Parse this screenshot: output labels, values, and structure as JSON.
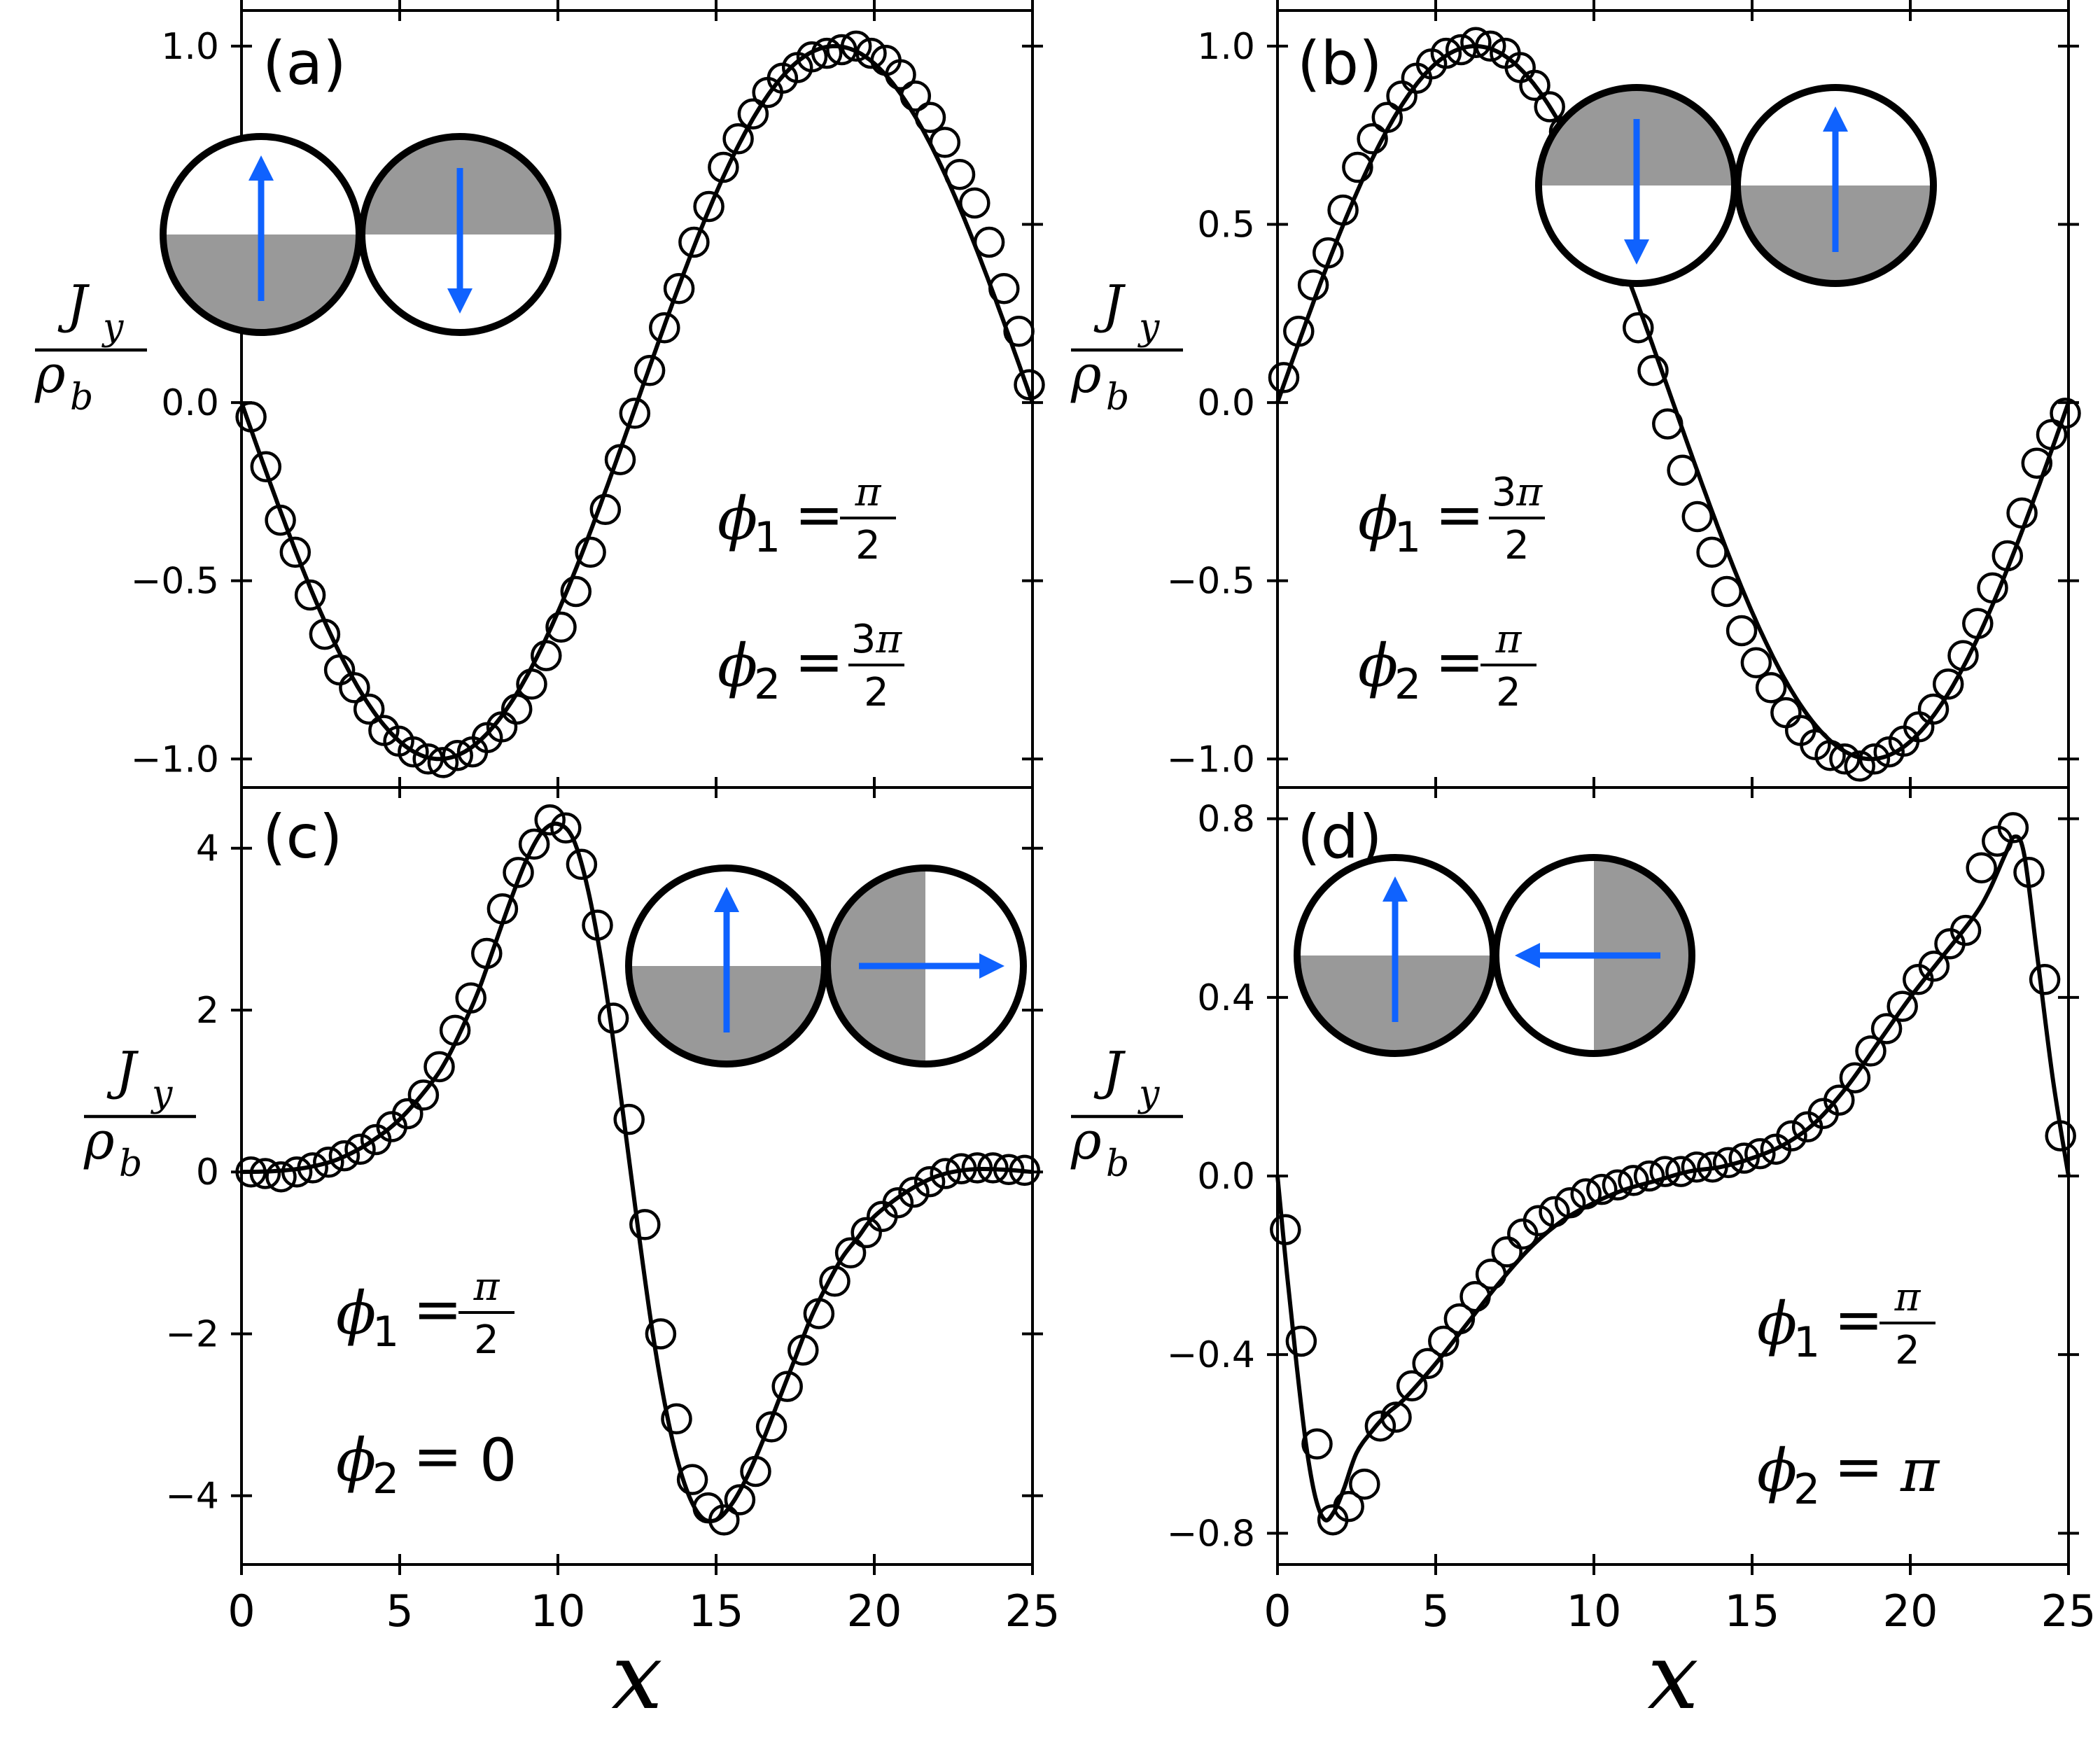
{
  "figure": {
    "xlabel": "x",
    "ylabel": {
      "numerator": "J",
      "numerator_sub": "y",
      "denominator": "ρ",
      "denominator_sub": "b"
    }
  },
  "chart_data": [
    {
      "id": "a",
      "type": "line",
      "panel_label": "(a)",
      "xlabel": "",
      "ylabel": "J_y / ρ_b",
      "xlim": [
        0,
        25
      ],
      "ylim": [
        -1.08,
        1.1
      ],
      "xticks": [
        0,
        5,
        10,
        15,
        20,
        25
      ],
      "yticks": [
        -1.0,
        -0.5,
        0.0,
        0.5,
        1.0
      ],
      "ytick_labels": [
        "−1.0",
        "−0.5",
        "0.0",
        "0.5",
        "1.0"
      ],
      "xtick_labels": [],
      "grid": false,
      "annotation": {
        "phi1": {
          "var": "ϕ",
          "sub": "1",
          "eq": "=",
          "num": "π",
          "den": "2"
        },
        "phi2": {
          "var": "ϕ",
          "sub": "2",
          "eq": "=",
          "num": "3π",
          "den": "2"
        }
      },
      "inset": {
        "left": {
          "arrow": "up",
          "shaded": "bottom"
        },
        "right": {
          "arrow": "down",
          "shaded": "top"
        }
      },
      "series": [
        {
          "kind": "line",
          "formula": "-sin(2*pi*x/25)"
        },
        {
          "kind": "markers",
          "marker": "open-circle",
          "x": [
            0.3,
            0.77,
            1.23,
            1.7,
            2.17,
            2.63,
            3.1,
            3.57,
            4.03,
            4.5,
            4.97,
            5.43,
            5.9,
            6.37,
            6.83,
            7.3,
            7.77,
            8.23,
            8.7,
            9.17,
            9.63,
            10.1,
            10.57,
            11.03,
            11.5,
            11.97,
            12.43,
            12.9,
            13.37,
            13.83,
            14.3,
            14.77,
            15.23,
            15.7,
            16.17,
            16.63,
            17.1,
            17.57,
            18.03,
            18.5,
            18.97,
            19.43,
            19.9,
            20.37,
            20.83,
            21.3,
            21.77,
            22.23,
            22.7,
            23.17,
            23.63,
            24.1,
            24.57,
            24.9
          ],
          "y": [
            -0.04,
            -0.18,
            -0.33,
            -0.42,
            -0.54,
            -0.65,
            -0.75,
            -0.8,
            -0.86,
            -0.92,
            -0.95,
            -0.98,
            -1.0,
            -1.01,
            -0.99,
            -0.98,
            -0.94,
            -0.91,
            -0.86,
            -0.79,
            -0.71,
            -0.63,
            -0.53,
            -0.42,
            -0.3,
            -0.16,
            -0.03,
            0.09,
            0.21,
            0.32,
            0.45,
            0.55,
            0.66,
            0.74,
            0.81,
            0.87,
            0.91,
            0.94,
            0.97,
            0.98,
            0.99,
            1.0,
            0.98,
            0.96,
            0.92,
            0.86,
            0.8,
            0.73,
            0.64,
            0.56,
            0.45,
            0.32,
            0.2,
            0.05
          ]
        }
      ]
    },
    {
      "id": "b",
      "type": "line",
      "panel_label": "(b)",
      "xlabel": "",
      "ylabel": "J_y / ρ_b",
      "xlim": [
        0,
        25
      ],
      "ylim": [
        -1.08,
        1.1
      ],
      "xticks": [
        0,
        5,
        10,
        15,
        20,
        25
      ],
      "yticks": [
        -1.0,
        -0.5,
        0.0,
        0.5,
        1.0
      ],
      "ytick_labels": [
        "−1.0",
        "−0.5",
        "0.0",
        "0.5",
        "1.0"
      ],
      "xtick_labels": [],
      "grid": false,
      "annotation": {
        "phi1": {
          "var": "ϕ",
          "sub": "1",
          "eq": "=",
          "num": "3π",
          "den": "2"
        },
        "phi2": {
          "var": "ϕ",
          "sub": "2",
          "eq": "=",
          "num": "π",
          "den": "2"
        }
      },
      "inset": {
        "left": {
          "arrow": "down",
          "shaded": "top"
        },
        "right": {
          "arrow": "up",
          "shaded": "bottom"
        }
      },
      "series": [
        {
          "kind": "line",
          "formula": "sin(2*pi*x/25)"
        },
        {
          "kind": "markers",
          "marker": "open-circle",
          "x": [
            0.2,
            0.67,
            1.13,
            1.6,
            2.07,
            2.53,
            3.0,
            3.47,
            3.93,
            4.4,
            4.87,
            5.33,
            5.8,
            6.27,
            6.73,
            7.2,
            7.67,
            8.13,
            8.6,
            9.07,
            9.53,
            10.0,
            10.47,
            10.93,
            11.4,
            11.87,
            12.33,
            12.8,
            13.27,
            13.73,
            14.2,
            14.67,
            15.13,
            15.6,
            16.07,
            16.53,
            17.0,
            17.47,
            17.93,
            18.4,
            18.87,
            19.33,
            19.8,
            20.27,
            20.73,
            21.2,
            21.67,
            22.13,
            22.6,
            23.07,
            23.53,
            24.0,
            24.47,
            24.9
          ],
          "y": [
            0.07,
            0.2,
            0.33,
            0.42,
            0.54,
            0.66,
            0.74,
            0.8,
            0.86,
            0.91,
            0.95,
            0.98,
            0.99,
            1.01,
            1.0,
            0.98,
            0.94,
            0.89,
            0.83,
            0.76,
            0.67,
            0.6,
            0.48,
            0.37,
            0.21,
            0.09,
            -0.06,
            -0.19,
            -0.32,
            -0.42,
            -0.53,
            -0.64,
            -0.73,
            -0.8,
            -0.87,
            -0.92,
            -0.96,
            -0.99,
            -1.0,
            -1.02,
            -1.0,
            -0.98,
            -0.95,
            -0.91,
            -0.86,
            -0.79,
            -0.71,
            -0.62,
            -0.52,
            -0.43,
            -0.31,
            -0.17,
            -0.09,
            -0.03
          ]
        }
      ]
    },
    {
      "id": "c",
      "type": "line",
      "panel_label": "(c)",
      "xlabel": "x",
      "ylabel": "J_y / ρ_b",
      "xlim": [
        0,
        25
      ],
      "ylim": [
        -4.85,
        4.75
      ],
      "xticks": [
        0,
        5,
        10,
        15,
        20,
        25
      ],
      "yticks": [
        -4,
        -2,
        0,
        2,
        4
      ],
      "ytick_labels": [
        "−4",
        "−2",
        "0",
        "2",
        "4"
      ],
      "xtick_labels": [
        "0",
        "5",
        "10",
        "15",
        "20",
        "25"
      ],
      "grid": false,
      "annotation": {
        "phi1": {
          "var": "ϕ",
          "sub": "1",
          "eq": "=",
          "num": "π",
          "den": "2"
        },
        "phi2": {
          "var": "ϕ",
          "sub": "2",
          "eq": "=",
          "value": "0"
        }
      },
      "inset": {
        "left": {
          "arrow": "up",
          "shaded": "bottom"
        },
        "right": {
          "arrow": "right",
          "shaded": "left"
        }
      },
      "series": [
        {
          "kind": "line",
          "x": [
            0,
            1,
            2,
            3,
            4,
            5,
            6,
            6.5,
            7,
            7.5,
            8,
            8.5,
            9,
            9.5,
            10,
            10.5,
            11,
            11.5,
            12,
            12.5,
            13,
            13.5,
            14,
            14.5,
            15,
            15.5,
            16,
            16.5,
            17,
            17.5,
            18,
            18.5,
            19,
            19.5,
            20,
            21,
            22,
            23,
            24,
            25
          ],
          "y": [
            0,
            0.01,
            0.05,
            0.15,
            0.35,
            0.65,
            1.1,
            1.4,
            1.8,
            2.25,
            2.8,
            3.35,
            3.85,
            4.2,
            4.3,
            4.1,
            3.4,
            2.3,
            0.9,
            -0.6,
            -2.0,
            -3.1,
            -3.85,
            -4.25,
            -4.3,
            -4.1,
            -3.75,
            -3.3,
            -2.8,
            -2.3,
            -1.8,
            -1.4,
            -1.05,
            -0.8,
            -0.55,
            -0.25,
            -0.05,
            0.03,
            0.03,
            0.0
          ]
        },
        {
          "kind": "markers",
          "marker": "open-circle",
          "x": [
            0.3,
            0.75,
            1.25,
            1.75,
            2.25,
            2.75,
            3.25,
            3.75,
            4.25,
            4.75,
            5.25,
            5.75,
            6.25,
            6.75,
            7.25,
            7.75,
            8.25,
            8.75,
            9.25,
            9.75,
            10.25,
            10.75,
            11.25,
            11.75,
            12.25,
            12.75,
            13.25,
            13.75,
            14.25,
            14.75,
            15.25,
            15.75,
            16.25,
            16.75,
            17.25,
            17.75,
            18.25,
            18.75,
            19.25,
            19.75,
            20.25,
            20.75,
            21.25,
            21.75,
            22.25,
            22.75,
            23.25,
            23.75,
            24.25,
            24.75
          ],
          "y": [
            0.0,
            -0.02,
            -0.06,
            0.0,
            0.05,
            0.12,
            0.2,
            0.28,
            0.4,
            0.56,
            0.72,
            0.95,
            1.3,
            1.75,
            2.15,
            2.7,
            3.25,
            3.7,
            4.05,
            4.35,
            4.25,
            3.8,
            3.05,
            1.9,
            0.65,
            -0.65,
            -2.0,
            -3.05,
            -3.8,
            -4.15,
            -4.3,
            -4.05,
            -3.7,
            -3.15,
            -2.65,
            -2.2,
            -1.75,
            -1.35,
            -1.0,
            -0.75,
            -0.55,
            -0.38,
            -0.25,
            -0.12,
            -0.02,
            0.04,
            0.05,
            0.05,
            0.03,
            0.02
          ]
        }
      ]
    },
    {
      "id": "d",
      "type": "line",
      "panel_label": "(d)",
      "xlabel": "x",
      "ylabel": "J_y / ρ_b",
      "xlim": [
        0,
        25
      ],
      "ylim": [
        -0.87,
        0.87
      ],
      "xticks": [
        0,
        5,
        10,
        15,
        20,
        25
      ],
      "yticks": [
        -0.8,
        -0.4,
        0.0,
        0.4,
        0.8
      ],
      "ytick_labels": [
        "−0.8",
        "−0.4",
        "0.0",
        "0.4",
        "0.8"
      ],
      "xtick_labels": [
        "0",
        "5",
        "10",
        "15",
        "20",
        "25"
      ],
      "grid": false,
      "annotation": {
        "phi1": {
          "var": "ϕ",
          "sub": "1",
          "eq": "=",
          "num": "π",
          "den": "2"
        },
        "phi2": {
          "var": "ϕ",
          "sub": "2",
          "eq": "=",
          "value_pi": "π"
        }
      },
      "inset": {
        "left": {
          "arrow": "up",
          "shaded": "bottom"
        },
        "right": {
          "arrow": "left",
          "shaded": "right"
        }
      },
      "series": [
        {
          "kind": "line",
          "x": [
            0,
            0.3,
            0.6,
            0.9,
            1.2,
            1.5,
            1.8,
            2.1,
            2.5,
            3,
            3.5,
            4,
            5,
            6,
            7,
            8,
            9,
            10,
            11,
            12,
            13,
            14,
            15,
            16,
            17,
            18,
            19,
            20,
            21,
            22,
            22.5,
            23,
            23.3,
            23.6,
            24,
            24.5,
            25
          ],
          "y": [
            0,
            -0.22,
            -0.42,
            -0.6,
            -0.72,
            -0.77,
            -0.75,
            -0.7,
            -0.62,
            -0.57,
            -0.53,
            -0.5,
            -0.42,
            -0.33,
            -0.24,
            -0.16,
            -0.1,
            -0.06,
            -0.03,
            -0.01,
            0.01,
            0.02,
            0.04,
            0.07,
            0.12,
            0.2,
            0.3,
            0.4,
            0.49,
            0.58,
            0.64,
            0.72,
            0.76,
            0.72,
            0.5,
            0.22,
            0.0
          ]
        },
        {
          "kind": "markers",
          "marker": "open-circle",
          "x": [
            0.25,
            0.75,
            1.25,
            1.75,
            2.25,
            2.75,
            3.25,
            3.75,
            4.25,
            4.75,
            5.25,
            5.75,
            6.25,
            6.75,
            7.25,
            7.75,
            8.25,
            8.75,
            9.25,
            9.75,
            10.25,
            10.75,
            11.25,
            11.75,
            12.25,
            12.75,
            13.25,
            13.75,
            14.25,
            14.75,
            15.25,
            15.75,
            16.25,
            16.75,
            17.25,
            17.75,
            18.25,
            18.75,
            19.25,
            19.75,
            20.25,
            20.75,
            21.25,
            21.75,
            22.25,
            22.75,
            23.25,
            23.75,
            24.25,
            24.75
          ],
          "y": [
            -0.12,
            -0.37,
            -0.6,
            -0.77,
            -0.74,
            -0.69,
            -0.56,
            -0.54,
            -0.47,
            -0.42,
            -0.37,
            -0.32,
            -0.27,
            -0.22,
            -0.17,
            -0.13,
            -0.1,
            -0.08,
            -0.06,
            -0.04,
            -0.03,
            -0.02,
            -0.01,
            0.0,
            0.01,
            0.01,
            0.02,
            0.02,
            0.03,
            0.04,
            0.05,
            0.06,
            0.09,
            0.11,
            0.14,
            0.17,
            0.22,
            0.28,
            0.33,
            0.38,
            0.44,
            0.47,
            0.52,
            0.55,
            0.69,
            0.75,
            0.78,
            0.68,
            0.44,
            0.09
          ]
        }
      ]
    }
  ],
  "colors": {
    "ink": "#000000",
    "arrow": "#0f62fe",
    "shade": "#999999"
  }
}
